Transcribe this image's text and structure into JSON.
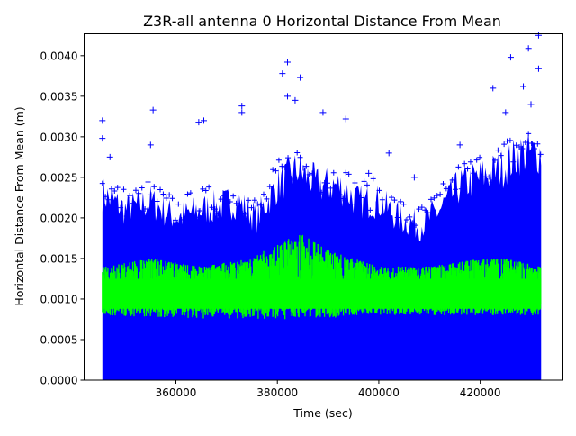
{
  "chart_data": {
    "type": "scatter",
    "title": "Z3R-all antenna 0 Horizontal Distance From Mean",
    "xlabel": "Time (sec)",
    "ylabel": "Horizontal Distance From Mean (m)",
    "xlim": [
      341900,
      436300
    ],
    "ylim": [
      0,
      0.00427
    ],
    "xticks": [
      360000,
      380000,
      400000,
      420000
    ],
    "xtick_labels": [
      "360000",
      "380000",
      "400000",
      "420000"
    ],
    "yticks": [
      0,
      0.0005,
      0.001,
      0.0015,
      0.002,
      0.0025,
      0.003,
      0.0035,
      0.004
    ],
    "ytick_labels": [
      "0.0000",
      "0.0005",
      "0.0010",
      "0.0015",
      "0.0020",
      "0.0025",
      "0.0030",
      "0.0035",
      "0.0040"
    ],
    "grid": false,
    "colors": {
      "markers": "#0000ff",
      "line": "#00ff00"
    },
    "series": [
      {
        "kind": "markers-plus",
        "color": "#0000ff",
        "x_range": [
          345500,
          432000
        ],
        "dense_envelope": {
          "x": [
            345500,
            350000,
            355000,
            360000,
            365000,
            372000,
            376000,
            380000,
            384000,
            388000,
            392000,
            396000,
            400000,
            404000,
            408000,
            412000,
            416000,
            420000,
            424000,
            428000,
            432000
          ],
          "upper": [
            0.0023,
            0.0021,
            0.0022,
            0.002,
            0.0021,
            0.0022,
            0.002,
            0.0024,
            0.0026,
            0.0024,
            0.0024,
            0.0022,
            0.0022,
            0.002,
            0.0019,
            0.0021,
            0.0024,
            0.0025,
            0.0026,
            0.0028,
            0.0028
          ]
        },
        "outliers": [
          [
            345500,
            0.0032
          ],
          [
            345500,
            0.00298
          ],
          [
            347000,
            0.00275
          ],
          [
            355500,
            0.00333
          ],
          [
            355000,
            0.0029
          ],
          [
            364500,
            0.00318
          ],
          [
            365500,
            0.0032
          ],
          [
            373000,
            0.00338
          ],
          [
            373000,
            0.0033
          ],
          [
            381000,
            0.00378
          ],
          [
            382000,
            0.00392
          ],
          [
            382000,
            0.0035
          ],
          [
            383500,
            0.00345
          ],
          [
            384500,
            0.00373
          ],
          [
            389000,
            0.0033
          ],
          [
            393500,
            0.00322
          ],
          [
            398000,
            0.00255
          ],
          [
            402000,
            0.0028
          ],
          [
            407000,
            0.0025
          ],
          [
            416000,
            0.0029
          ],
          [
            422500,
            0.0036
          ],
          [
            425000,
            0.0033
          ],
          [
            426000,
            0.00398
          ],
          [
            428500,
            0.00362
          ],
          [
            429500,
            0.00409
          ],
          [
            430000,
            0.0034
          ],
          [
            431500,
            0.00425
          ],
          [
            431500,
            0.00384
          ]
        ]
      },
      {
        "kind": "line",
        "color": "#00ff00",
        "x_range": [
          345500,
          432000
        ],
        "band": {
          "x": [
            345500,
            355000,
            365000,
            375000,
            380000,
            385000,
            390000,
            395000,
            400000,
            410000,
            420000,
            425000,
            432000
          ],
          "low": [
            0.0008,
            0.00078,
            0.00076,
            0.00076,
            0.00074,
            0.00078,
            0.00076,
            0.00078,
            0.0008,
            0.0008,
            0.0008,
            0.0008,
            0.0008
          ],
          "high": [
            0.0014,
            0.0015,
            0.0014,
            0.0015,
            0.0017,
            0.0018,
            0.0016,
            0.0015,
            0.0014,
            0.0014,
            0.0015,
            0.0015,
            0.0014
          ]
        }
      }
    ]
  }
}
